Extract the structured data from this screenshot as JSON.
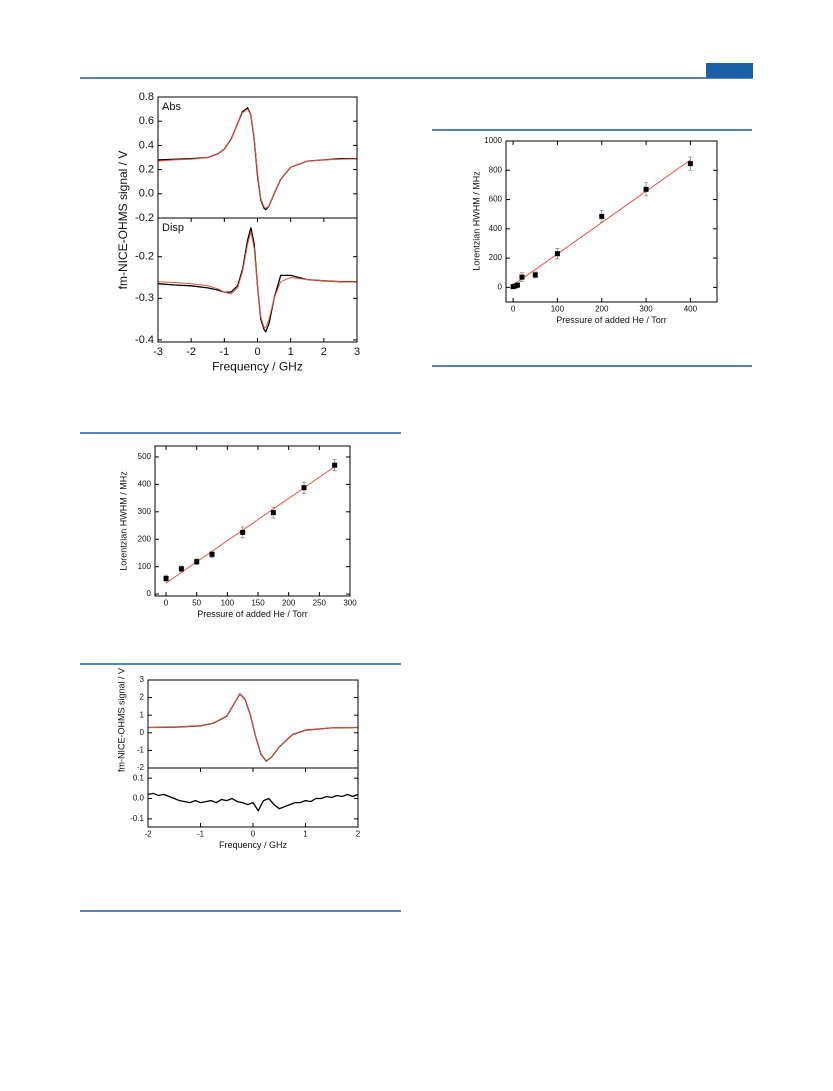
{
  "chart_data": [
    {
      "type": "line",
      "annotation": "Abs",
      "x": [
        -3,
        -2.5,
        -2,
        -1.5,
        -1.2,
        -1,
        -0.8,
        -0.6,
        -0.45,
        -0.3,
        -0.2,
        -0.1,
        0,
        0.1,
        0.2,
        0.25,
        0.35,
        0.5,
        0.7,
        1,
        1.5,
        2,
        2.5,
        3
      ],
      "series": [
        {
          "color": "#000000",
          "values": [
            0.28,
            0.285,
            0.29,
            0.3,
            0.33,
            0.37,
            0.45,
            0.58,
            0.68,
            0.71,
            0.65,
            0.45,
            0.15,
            -0.05,
            -0.12,
            -0.13,
            -0.1,
            0.0,
            0.12,
            0.22,
            0.27,
            0.28,
            0.29,
            0.29
          ]
        },
        {
          "color": "#e8543f",
          "values": [
            0.27,
            0.28,
            0.285,
            0.3,
            0.33,
            0.37,
            0.45,
            0.58,
            0.67,
            0.7,
            0.65,
            0.46,
            0.17,
            -0.04,
            -0.11,
            -0.12,
            -0.1,
            0.0,
            0.12,
            0.22,
            0.27,
            0.28,
            0.285,
            0.29
          ]
        }
      ],
      "xlim": [
        -3,
        3
      ],
      "ylim": [
        -0.2,
        0.8
      ],
      "yticks": [
        -0.2,
        {
          "value": 0,
          "label": "0.0"
        },
        0.2,
        0.4,
        0.6,
        0.8
      ],
      "ylabel": "fm-NICE-OHMS signal / V"
    },
    {
      "type": "line",
      "annotation": "Disp",
      "x": [
        -3,
        -2.5,
        -2,
        -1.5,
        -1.2,
        -1,
        -0.8,
        -0.6,
        -0.45,
        -0.3,
        -0.2,
        -0.1,
        0,
        0.1,
        0.2,
        0.25,
        0.35,
        0.5,
        0.7,
        1,
        1.5,
        2,
        2.5,
        3
      ],
      "series": [
        {
          "color": "#000000",
          "values": [
            -0.265,
            -0.268,
            -0.27,
            -0.275,
            -0.28,
            -0.285,
            -0.285,
            -0.27,
            -0.23,
            -0.16,
            -0.13,
            -0.17,
            -0.27,
            -0.35,
            -0.375,
            -0.38,
            -0.36,
            -0.3,
            -0.245,
            -0.245,
            -0.255,
            -0.258,
            -0.26,
            -0.26
          ]
        },
        {
          "color": "#e8543f",
          "values": [
            -0.26,
            -0.262,
            -0.265,
            -0.27,
            -0.277,
            -0.285,
            -0.29,
            -0.275,
            -0.235,
            -0.17,
            -0.14,
            -0.18,
            -0.27,
            -0.345,
            -0.37,
            -0.37,
            -0.35,
            -0.3,
            -0.26,
            -0.25,
            -0.255,
            -0.258,
            -0.26,
            -0.26
          ]
        }
      ],
      "xlim": [
        -3,
        3
      ],
      "xticks": [
        -3,
        -2,
        -1,
        0,
        1,
        2,
        3
      ],
      "ylim": [
        -0.405,
        -0.107
      ],
      "yticks": [
        -0.4,
        -0.3,
        -0.2
      ],
      "xlabel": "Frequency / GHz"
    },
    {
      "type": "scatter",
      "x": [
        0,
        5,
        10,
        20,
        50,
        100,
        200,
        300,
        400
      ],
      "series": [
        {
          "color": "#000000",
          "values": [
            5,
            10,
            15,
            70,
            85,
            230,
            485,
            670,
            845
          ],
          "errors": [
            10,
            10,
            10,
            30,
            20,
            35,
            40,
            45,
            45
          ]
        }
      ],
      "fit": {
        "color": "#e8543f",
        "x": [
          0,
          400
        ],
        "values": [
          15,
          870
        ]
      },
      "xlim": [
        -16,
        460
      ],
      "xticks": [
        0,
        100,
        200,
        300,
        400
      ],
      "ylim": [
        -100,
        1000
      ],
      "yticks": [
        0,
        200,
        400,
        600,
        800,
        1000
      ],
      "xlabel": "Pressure of added He / Torr",
      "ylabel": "Lorentzian HWHM / MHz"
    },
    {
      "type": "scatter",
      "x": [
        0,
        25,
        50,
        75,
        125,
        175,
        225,
        275
      ],
      "series": [
        {
          "color": "#000000",
          "values": [
            57,
            92,
            118,
            145,
            225,
            297,
            388,
            470
          ],
          "errors": [
            12,
            10,
            10,
            12,
            20,
            20,
            20,
            20
          ]
        }
      ],
      "fit": {
        "color": "#e8543f",
        "x": [
          0,
          275
        ],
        "values": [
          40,
          465
        ]
      },
      "xlim": [
        -18,
        300
      ],
      "xticks": [
        0,
        50,
        100,
        150,
        200,
        250,
        300
      ],
      "ylim": [
        -7,
        540
      ],
      "yticks": [
        0,
        100,
        200,
        300,
        400,
        500
      ],
      "xlabel": "Pressure of added He / Torr",
      "ylabel": "Lorentzian HWHM / MHz"
    },
    {
      "type": "line",
      "x": [
        -2,
        -1.5,
        -1,
        -0.75,
        -0.5,
        -0.35,
        -0.25,
        -0.15,
        -0.05,
        0.05,
        0.15,
        0.25,
        0.35,
        0.5,
        0.75,
        1,
        1.5,
        2
      ],
      "series": [
        {
          "color": "#000000",
          "values": [
            0.3,
            0.32,
            0.4,
            0.55,
            0.95,
            1.7,
            2.2,
            1.9,
            1.0,
            -0.2,
            -1.2,
            -1.6,
            -1.4,
            -0.8,
            -0.1,
            0.15,
            0.28,
            0.3
          ]
        },
        {
          "color": "#e8543f",
          "values": [
            0.3,
            0.32,
            0.4,
            0.55,
            0.96,
            1.7,
            2.18,
            1.9,
            1.0,
            -0.2,
            -1.2,
            -1.58,
            -1.4,
            -0.8,
            -0.1,
            0.15,
            0.28,
            0.3
          ]
        }
      ],
      "xlim": [
        -2,
        2
      ],
      "ylim": [
        -2,
        3
      ],
      "yticks": [
        -2,
        -1,
        0,
        1,
        2,
        3
      ],
      "ylabel": "fm-NICE-OHMS signal / V"
    },
    {
      "type": "line",
      "x": [
        -2,
        -1.9,
        -1.8,
        -1.7,
        -1.6,
        -1.5,
        -1.4,
        -1.3,
        -1.2,
        -1.1,
        -1,
        -0.9,
        -0.8,
        -0.7,
        -0.6,
        -0.5,
        -0.4,
        -0.3,
        -0.2,
        -0.1,
        0,
        0.1,
        0.2,
        0.3,
        0.4,
        0.5,
        0.6,
        0.7,
        0.8,
        0.9,
        1,
        1.1,
        1.2,
        1.3,
        1.4,
        1.5,
        1.6,
        1.7,
        1.8,
        1.9,
        2
      ],
      "series": [
        {
          "color": "#000000",
          "values": [
            0.02,
            0.025,
            0.015,
            0.02,
            0.01,
            0.0,
            -0.01,
            -0.015,
            -0.02,
            -0.01,
            -0.02,
            -0.015,
            -0.01,
            -0.02,
            -0.005,
            -0.01,
            0.0,
            -0.015,
            -0.02,
            -0.03,
            -0.02,
            -0.06,
            -0.01,
            0.0,
            -0.03,
            -0.05,
            -0.04,
            -0.03,
            -0.02,
            -0.02,
            -0.01,
            -0.015,
            0.0,
            0.0,
            0.01,
            0.005,
            0.015,
            0.01,
            0.02,
            0.01,
            0.02
          ]
        }
      ],
      "xlim": [
        -2,
        2
      ],
      "xticks": [
        -2,
        -1,
        0,
        1,
        2
      ],
      "ylim": [
        -0.14,
        0.15
      ],
      "yticks": [
        -0.1,
        {
          "value": 0,
          "label": "0.0"
        },
        0.1
      ],
      "xlabel": "Frequency / GHz"
    }
  ]
}
